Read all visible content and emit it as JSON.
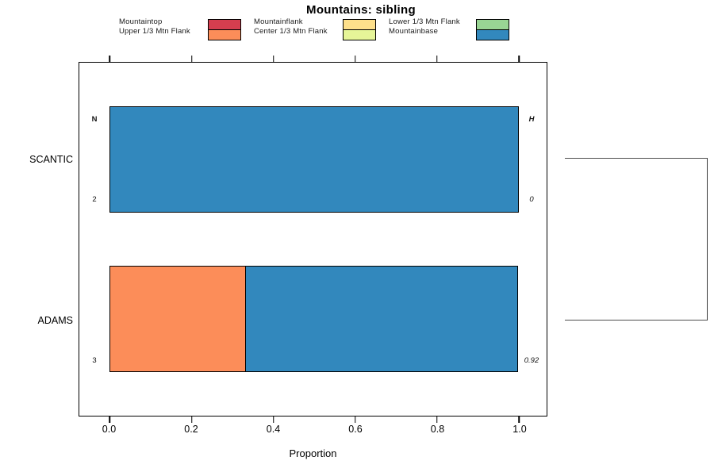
{
  "title": "Mountains: sibling",
  "chart_data": {
    "type": "bar",
    "orientation": "horizontal",
    "stacked": true,
    "title": "Mountains: sibling",
    "xlabel": "Proportion",
    "xlim": [
      0,
      1
    ],
    "x_ticks": [
      "0.0",
      "0.2",
      "0.4",
      "0.6",
      "0.8",
      "1.0"
    ],
    "x_tick_values": [
      0,
      0.2,
      0.4,
      0.6,
      0.8,
      1.0
    ],
    "categories": [
      "SCANTIC",
      "ADAMS"
    ],
    "series": [
      {
        "name": "Mountaintop",
        "color": "#D53E4F",
        "values": [
          0,
          0
        ]
      },
      {
        "name": "Upper 1/3 Mtn Flank",
        "color": "#FC8D59",
        "values": [
          0,
          0.333
        ]
      },
      {
        "name": "Mountainflank",
        "color": "#FEE08B",
        "values": [
          0,
          0
        ]
      },
      {
        "name": "Center 1/3 Mtn Flank",
        "color": "#E6F598",
        "values": [
          0,
          0
        ]
      },
      {
        "name": "Lower 1/3 Mtn Flank",
        "color": "#99D594",
        "values": [
          0,
          0
        ]
      },
      {
        "name": "Mountainbase",
        "color": "#3288BD",
        "values": [
          1.0,
          0.667
        ]
      }
    ],
    "annotations": {
      "n_header": "N",
      "h_header": "H",
      "rows": [
        {
          "category": "SCANTIC",
          "n": "2",
          "h": "0"
        },
        {
          "category": "ADAMS",
          "n": "3",
          "h": "0.92"
        }
      ]
    },
    "legend_position": "top",
    "grid": false,
    "right_dendrogram": {
      "joined": [
        "SCANTIC",
        "ADAMS"
      ]
    }
  }
}
